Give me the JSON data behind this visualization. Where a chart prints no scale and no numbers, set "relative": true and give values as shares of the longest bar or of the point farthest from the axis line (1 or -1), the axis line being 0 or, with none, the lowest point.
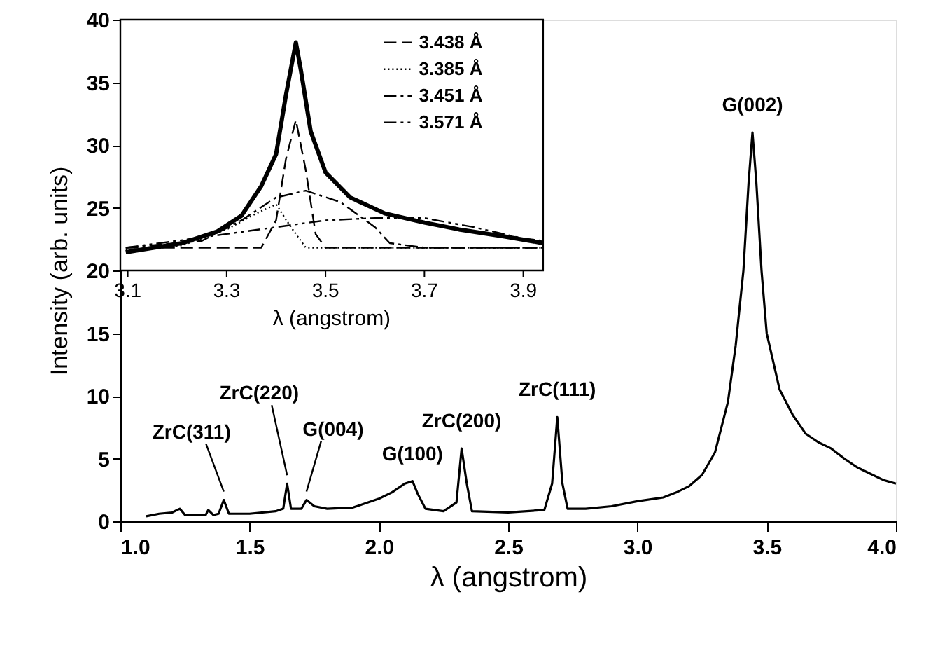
{
  "chart_data": [
    {
      "type": "line",
      "xlabel": "λ (angstrom)",
      "ylabel": "Intensity (arb. units)",
      "xlim": [
        1.0,
        4.0
      ],
      "ylim": [
        0,
        40
      ],
      "xticks": [
        {
          "value": 1,
          "label": "1.0"
        },
        1.5,
        {
          "value": 2,
          "label": "2.0"
        },
        2.5,
        {
          "value": 3,
          "label": "3.0"
        },
        3.5,
        {
          "value": 4,
          "label": "4.0"
        }
      ],
      "yticks": [
        0,
        5,
        10,
        15,
        20,
        25,
        30,
        35,
        40
      ],
      "grid": false,
      "legend": false,
      "marker": "none",
      "series": [
        {
          "color": "#000000",
          "line_style": "solid",
          "x": [
            1.1,
            1.15,
            1.2,
            1.23,
            1.25,
            1.3,
            1.33,
            1.34,
            1.36,
            1.38,
            1.4,
            1.42,
            1.5,
            1.6,
            1.63,
            1.645,
            1.66,
            1.7,
            1.72,
            1.75,
            1.8,
            1.9,
            2.0,
            2.05,
            2.1,
            2.13,
            2.15,
            2.18,
            2.25,
            2.3,
            2.32,
            2.34,
            2.36,
            2.5,
            2.64,
            2.67,
            2.69,
            2.71,
            2.73,
            2.8,
            2.9,
            3.0,
            3.1,
            3.15,
            3.2,
            3.25,
            3.3,
            3.35,
            3.38,
            3.41,
            3.43,
            3.445,
            3.46,
            3.48,
            3.5,
            3.55,
            3.6,
            3.65,
            3.7,
            3.75,
            3.8,
            3.85,
            3.9,
            3.95,
            4.0
          ],
          "values": [
            0.4,
            0.6,
            0.7,
            1.0,
            0.5,
            0.5,
            0.5,
            0.9,
            0.5,
            0.6,
            1.7,
            0.6,
            0.6,
            0.8,
            1.0,
            3.0,
            1.0,
            1.0,
            1.7,
            1.2,
            1.0,
            1.1,
            1.8,
            2.3,
            3.0,
            3.2,
            2.2,
            1.0,
            0.8,
            1.5,
            5.8,
            3.0,
            0.8,
            0.7,
            0.9,
            3.0,
            8.3,
            3.0,
            1.0,
            1.0,
            1.2,
            1.6,
            1.9,
            2.3,
            2.8,
            3.7,
            5.5,
            9.5,
            14,
            20,
            27,
            31,
            27,
            20,
            15,
            10.5,
            8.5,
            7.0,
            6.3,
            5.8,
            5.0,
            4.3,
            3.8,
            3.3,
            3.0
          ]
        }
      ],
      "annotations": [
        {
          "text": "ZrC(311)",
          "x": 1.4,
          "y": 1.7
        },
        {
          "text": "ZrC(220)",
          "x": 1.645,
          "y": 3.0
        },
        {
          "text": "G(004)",
          "x": 1.72,
          "y": 1.7
        },
        {
          "text": "G(100)",
          "x": 2.13,
          "y": 3.2
        },
        {
          "text": "ZrC(200)",
          "x": 2.32,
          "y": 5.8
        },
        {
          "text": "ZrC(111)",
          "x": 2.69,
          "y": 8.3
        },
        {
          "text": "G(002)",
          "x": 3.445,
          "y": 31
        }
      ]
    },
    {
      "type": "line",
      "xlabel": "λ (angstrom)",
      "xlim": [
        3.085,
        3.94
      ],
      "xticks": [
        3.1,
        3.3,
        3.5,
        3.7,
        3.9
      ],
      "tick_labels": "x",
      "relative": true,
      "legend": "top right",
      "marker": "none",
      "series": [
        {
          "color": "#000000",
          "line_style": "solid",
          "x": [
            3.096,
            3.21,
            3.28,
            3.33,
            3.37,
            3.4,
            3.42,
            3.44,
            3.45,
            3.47,
            3.5,
            3.55,
            3.62,
            3.7,
            3.77,
            3.86,
            3.94
          ],
          "values": [
            0.08,
            0.12,
            0.17,
            0.24,
            0.37,
            0.51,
            0.77,
            1,
            0.88,
            0.61,
            0.43,
            0.32,
            0.25,
            0.21,
            0.18,
            0.15,
            0.12
          ]
        },
        {
          "name": "3.438 Å",
          "color": "#000000",
          "line_style": "dashed",
          "x": [
            3.096,
            3.37,
            3.4,
            3.42,
            3.44,
            3.46,
            3.48,
            3.5,
            3.94
          ],
          "values": [
            0.1,
            0.1,
            0.22,
            0.49,
            0.66,
            0.44,
            0.16,
            0.1,
            0.1
          ]
        },
        {
          "name": "3.385 Å",
          "color": "#000000",
          "line_style": "dotted",
          "x": [
            3.096,
            3.21,
            3.3,
            3.36,
            3.4,
            3.43,
            3.46,
            3.5,
            3.94
          ],
          "values": [
            0.09,
            0.11,
            0.18,
            0.25,
            0.29,
            0.19,
            0.1,
            0.1,
            0.1
          ]
        },
        {
          "name": "3.451 Å",
          "color": "#000000",
          "line_style": "dashdot",
          "x": [
            3.096,
            3.25,
            3.33,
            3.4,
            3.46,
            3.53,
            3.6,
            3.63,
            3.7,
            3.94
          ],
          "values": [
            0.1,
            0.13,
            0.22,
            0.32,
            0.35,
            0.3,
            0.19,
            0.12,
            0.1,
            0.1
          ]
        },
        {
          "name": "3.571 Å",
          "color": "#000000",
          "line_style": "dashdotdot",
          "x": [
            3.096,
            3.2,
            3.3,
            3.4,
            3.5,
            3.6,
            3.7,
            3.8,
            3.9,
            3.94
          ],
          "values": [
            0.1,
            0.13,
            0.16,
            0.19,
            0.22,
            0.23,
            0.23,
            0.19,
            0.14,
            0.13
          ]
        }
      ]
    }
  ]
}
